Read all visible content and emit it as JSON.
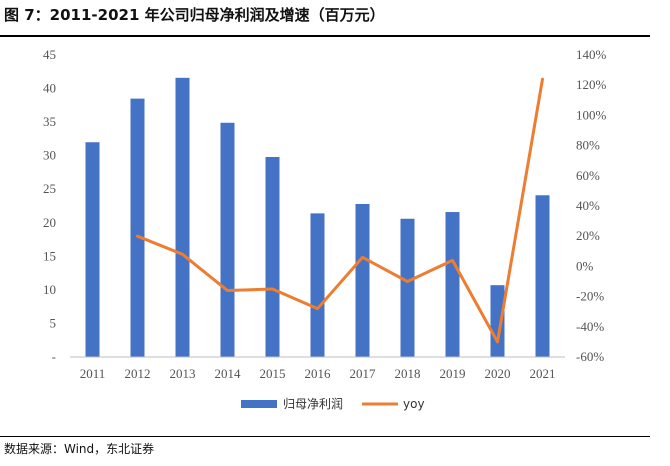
{
  "title": "图 7：2011-2021 年公司归母净利润及增速（百万元）",
  "source": "数据来源：Wind，东北证券",
  "chart_data": {
    "type": "bar",
    "categories": [
      "2011",
      "2012",
      "2013",
      "2014",
      "2015",
      "2016",
      "2017",
      "2018",
      "2019",
      "2020",
      "2021"
    ],
    "series": [
      {
        "name": "归母净利润",
        "type": "bar",
        "axis": "left",
        "color": "#4472C4",
        "values": [
          32.0,
          38.5,
          41.6,
          34.9,
          29.8,
          21.4,
          22.8,
          20.6,
          21.6,
          10.7,
          24.1
        ]
      },
      {
        "name": "yoy",
        "type": "line",
        "axis": "right",
        "color": "#ED7D31",
        "values": [
          null,
          20,
          8,
          -16,
          -15,
          -28,
          6,
          -10,
          4,
          -50,
          124
        ]
      }
    ],
    "yleft": {
      "min": 0,
      "max": 45,
      "step": 5,
      "ticks": [
        "-",
        "5",
        "10",
        "15",
        "20",
        "25",
        "30",
        "35",
        "40",
        "45"
      ]
    },
    "yright": {
      "min": -60,
      "max": 140,
      "step": 20,
      "ticks": [
        "-60%",
        "-40%",
        "-20%",
        "0%",
        "20%",
        "40%",
        "60%",
        "80%",
        "100%",
        "120%",
        "140%"
      ]
    },
    "legend": "bottom",
    "grid": false
  }
}
